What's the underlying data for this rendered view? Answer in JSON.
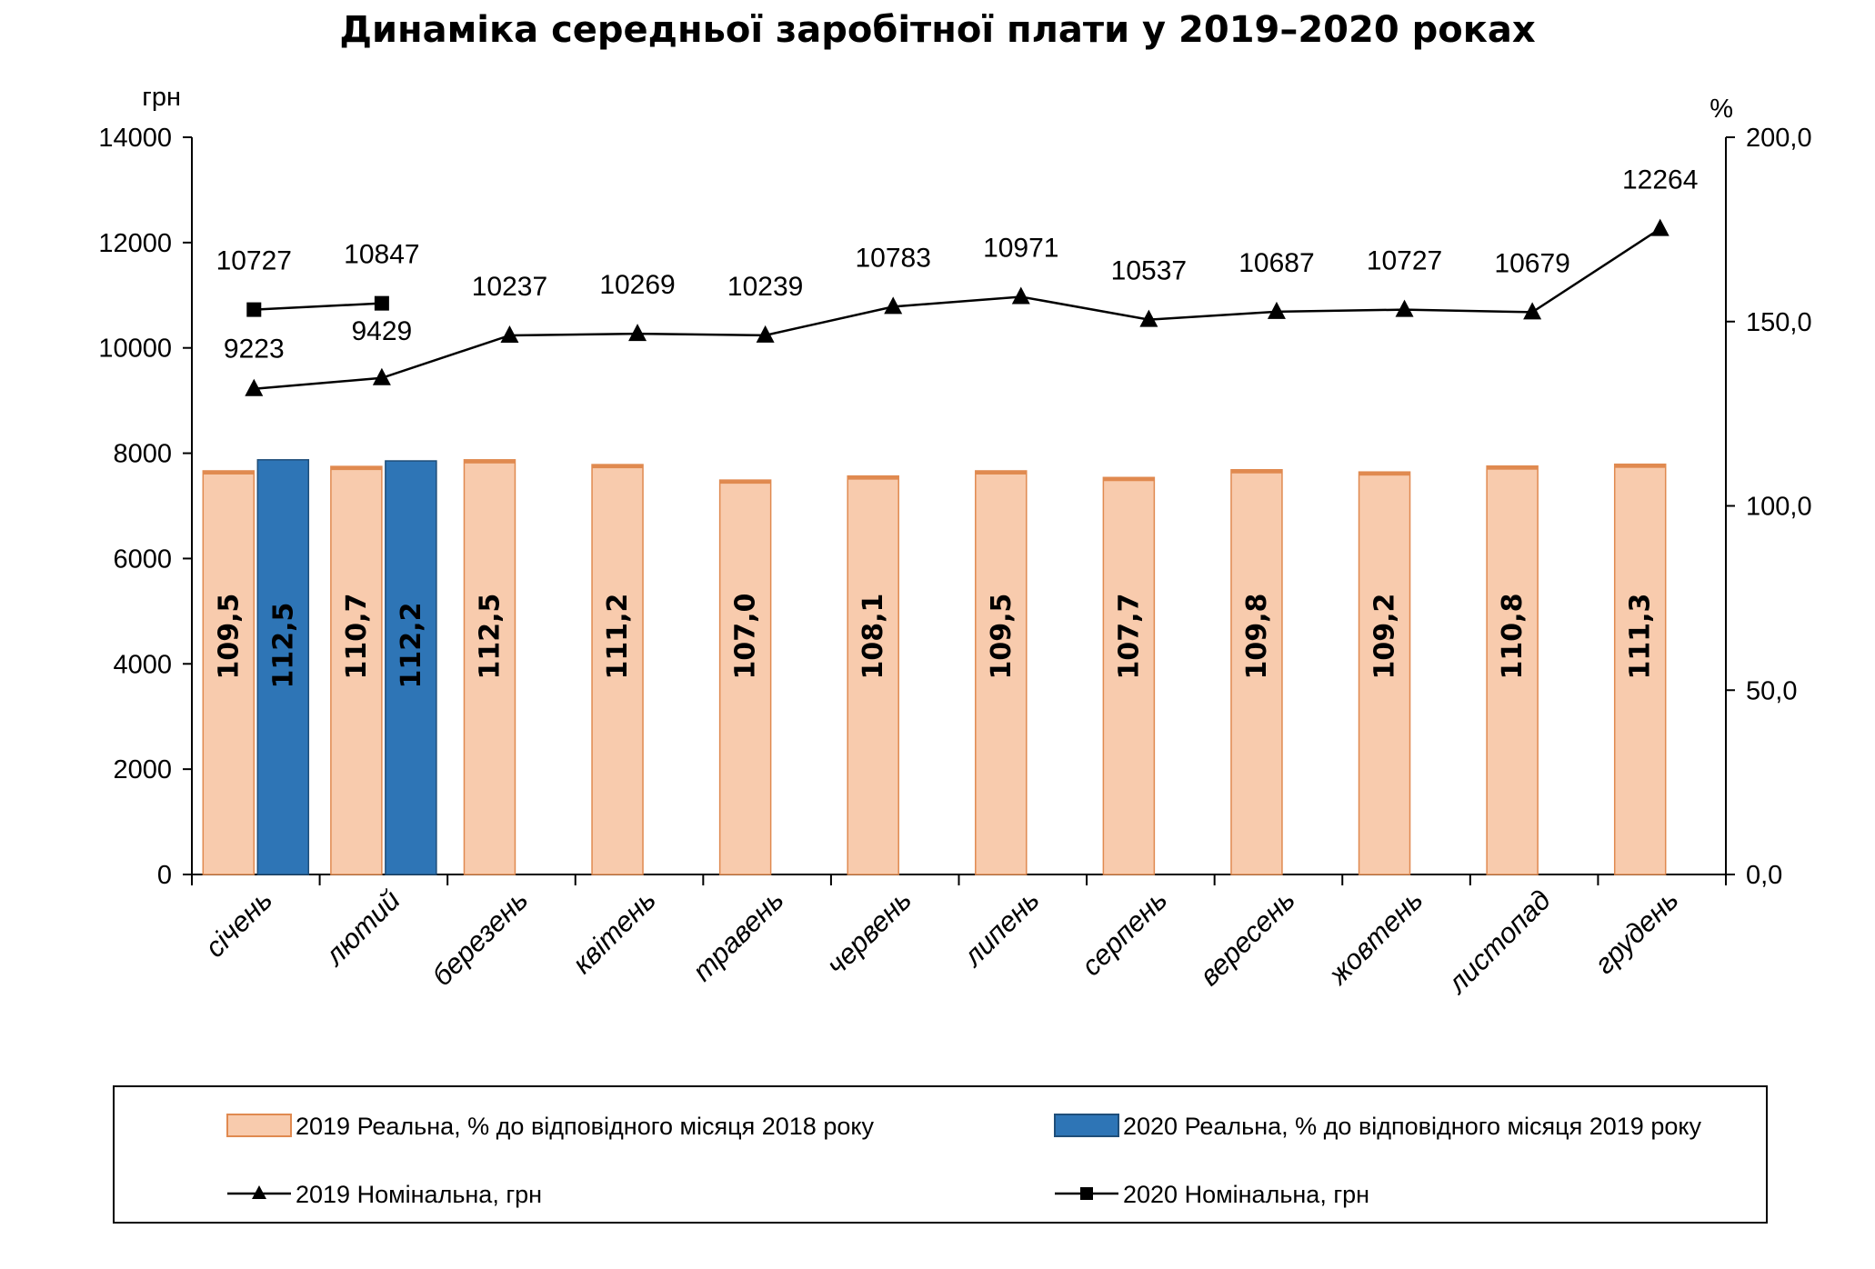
{
  "chart_data": {
    "type": "bar",
    "title": "Динаміка середньої заробітної плати у 2019–2020 роках",
    "y_left_unit": "грн",
    "y_right_unit": "%",
    "ylim_left": [
      0,
      14000
    ],
    "ylim_right": [
      0,
      200
    ],
    "yticks_left": [
      "0",
      "2000",
      "4000",
      "6000",
      "8000",
      "10000",
      "12000",
      "14000"
    ],
    "yticks_right": [
      "0,0",
      "50,0",
      "100,0",
      "150,0",
      "200,0"
    ],
    "grid": false,
    "legend_position": "bottom",
    "categories": [
      "січень",
      "лютий",
      "березень",
      "квітень",
      "травень",
      "червень",
      "липень",
      "серпень",
      "вересень",
      "жовтень",
      "листопад",
      "грудень"
    ],
    "series": [
      {
        "name": "2019 Реальна, % до відповідного місяця 2018 року",
        "kind": "bar",
        "axis": "right",
        "color": "#F8CBAD",
        "edge": "#E08A50",
        "values": [
          109.5,
          110.7,
          112.5,
          111.2,
          107.0,
          108.1,
          109.5,
          107.7,
          109.8,
          109.2,
          110.8,
          111.3
        ],
        "labels": [
          "109,5",
          "110,7",
          "112,5",
          "111,2",
          "107,0",
          "108,1",
          "109,5",
          "107,7",
          "109,8",
          "109,2",
          "110,8",
          "111,3"
        ]
      },
      {
        "name": "2020 Реальна, % до відповідного місяця 2019 року",
        "kind": "bar",
        "axis": "right",
        "color": "#2E75B6",
        "edge": "#1F4E79",
        "values": [
          112.5,
          112.2,
          null,
          null,
          null,
          null,
          null,
          null,
          null,
          null,
          null,
          null
        ],
        "labels": [
          "112,5",
          "112,2"
        ]
      },
      {
        "name": "2019 Номінальна, грн",
        "kind": "line",
        "axis": "left",
        "marker": "triangle",
        "color": "#000000",
        "values": [
          9223,
          9429,
          10237,
          10269,
          10239,
          10783,
          10971,
          10537,
          10687,
          10727,
          10679,
          12264
        ],
        "labels": [
          "9223",
          "9429",
          "10237",
          "10269",
          "10239",
          "10783",
          "10971",
          "10537",
          "10687",
          "10727",
          "10679",
          "12264"
        ]
      },
      {
        "name": "2020 Номінальна, грн",
        "kind": "line",
        "axis": "left",
        "marker": "square",
        "color": "#000000",
        "values": [
          10727,
          10847,
          null,
          null,
          null,
          null,
          null,
          null,
          null,
          null,
          null,
          null
        ],
        "labels": [
          "10727",
          "10847"
        ]
      }
    ]
  }
}
